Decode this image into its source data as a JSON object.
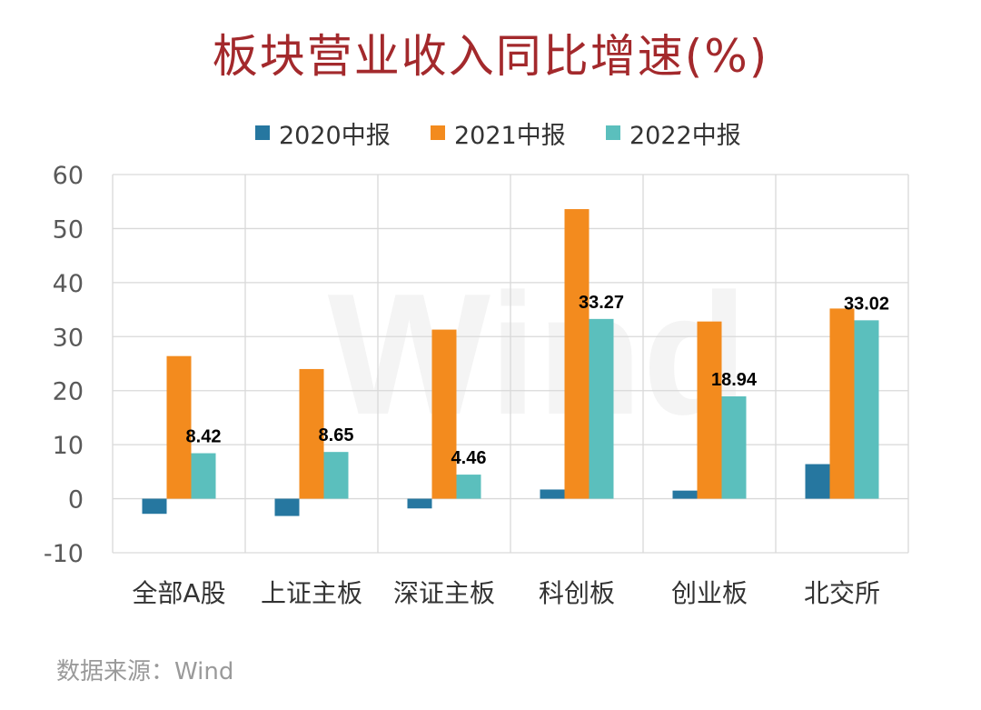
{
  "title": "板块营业收入同比增速(%)",
  "source": "数据来源：Wind",
  "watermark": "Wind",
  "colors": {
    "title": "#a3292c",
    "grid": "#d9d9d9",
    "axis_text": "#595959"
  },
  "chart_data": {
    "type": "bar",
    "title": "板块营业收入同比增速(%)",
    "xlabel": "",
    "ylabel": "",
    "ylim": [
      -10,
      60
    ],
    "yticks": [
      60,
      50,
      40,
      30,
      20,
      10,
      0,
      -10
    ],
    "grid": true,
    "legend_position": "top",
    "categories": [
      "全部A股",
      "上证主板",
      "深证主板",
      "科创板",
      "创业板",
      "北交所"
    ],
    "series": [
      {
        "name": "2020中报",
        "color": "#2677a0",
        "values": [
          -2.8,
          -3.2,
          -1.8,
          1.7,
          1.5,
          6.4
        ],
        "labels": [
          "",
          "",
          "",
          "",
          "",
          ""
        ]
      },
      {
        "name": "2021中报",
        "color": "#f38b1e",
        "values": [
          26.4,
          24.0,
          31.3,
          53.6,
          32.8,
          35.2
        ],
        "labels": [
          "",
          "",
          "",
          "",
          "",
          ""
        ]
      },
      {
        "name": "2022中报",
        "color": "#5bbfbd",
        "values": [
          8.42,
          8.65,
          4.46,
          33.27,
          18.94,
          33.02
        ],
        "labels": [
          "8.42",
          "8.65",
          "4.46",
          "33.27",
          "18.94",
          "33.02"
        ]
      }
    ]
  }
}
